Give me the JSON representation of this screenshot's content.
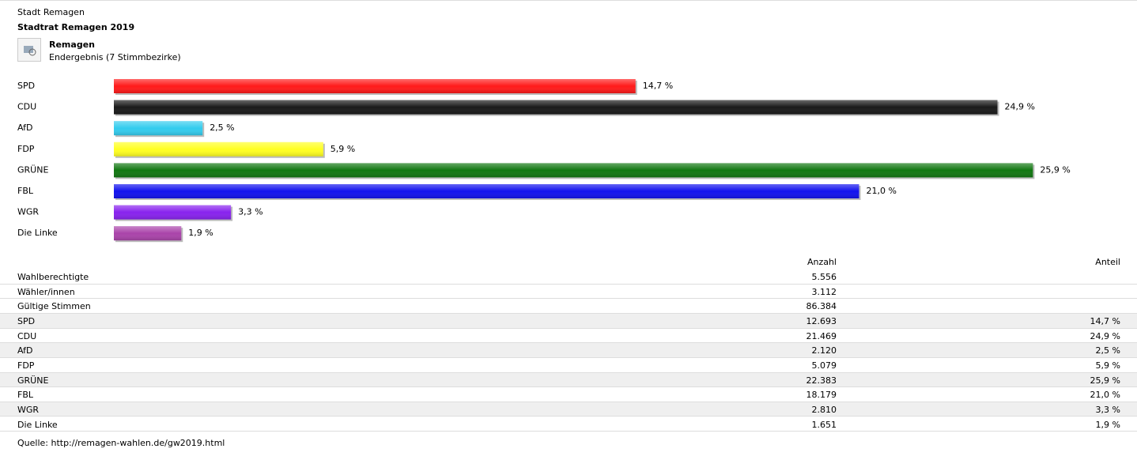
{
  "header": {
    "org": "Stadt Remagen",
    "title": "Stadtrat Remagen 2019",
    "area": "Remagen",
    "status": "Endergebnis (7 Stimmbezirke)"
  },
  "chart_data": {
    "type": "bar",
    "categories": [
      "SPD",
      "CDU",
      "AfD",
      "FDP",
      "GRÜNE",
      "FBL",
      "WGR",
      "Die Linke"
    ],
    "values": [
      14.7,
      24.9,
      2.5,
      5.9,
      25.9,
      21.0,
      3.3,
      1.9
    ],
    "value_labels": [
      "14,7 %",
      "24,9 %",
      "2,5 %",
      "5,9 %",
      "25,9 %",
      "21,0 %",
      "3,3 %",
      "1,9 %"
    ],
    "colors": [
      "#ff1a1a",
      "#1a1a1a",
      "#33ccee",
      "#ffff22",
      "#117711",
      "#1111ee",
      "#8822ee",
      "#aa44aa"
    ]
  },
  "table": {
    "columns": [
      "Anzahl",
      "Anteil"
    ],
    "rows": [
      [
        "Wahlberechtigte",
        "5.556"
      ],
      [
        "Wähler/innen",
        "3.112"
      ],
      [
        "Gültige Stimmen",
        "86.384"
      ],
      [
        "SPD",
        "12.693",
        "14,7 %"
      ],
      [
        "CDU",
        "21.469",
        "24,9 %"
      ],
      [
        "AfD",
        "2.120",
        "2,5 %"
      ],
      [
        "FDP",
        "5.079",
        "5,9 %"
      ],
      [
        "GRÜNE",
        "22.383",
        "25,9 %"
      ],
      [
        "FBL",
        "18.179",
        "21,0 %"
      ],
      [
        "WGR",
        "2.810",
        "3,3 %"
      ],
      [
        "Die Linke",
        "1.651",
        "1,9 %"
      ]
    ]
  },
  "source": "Quelle: http://remagen-wahlen.de/gw2019.html"
}
